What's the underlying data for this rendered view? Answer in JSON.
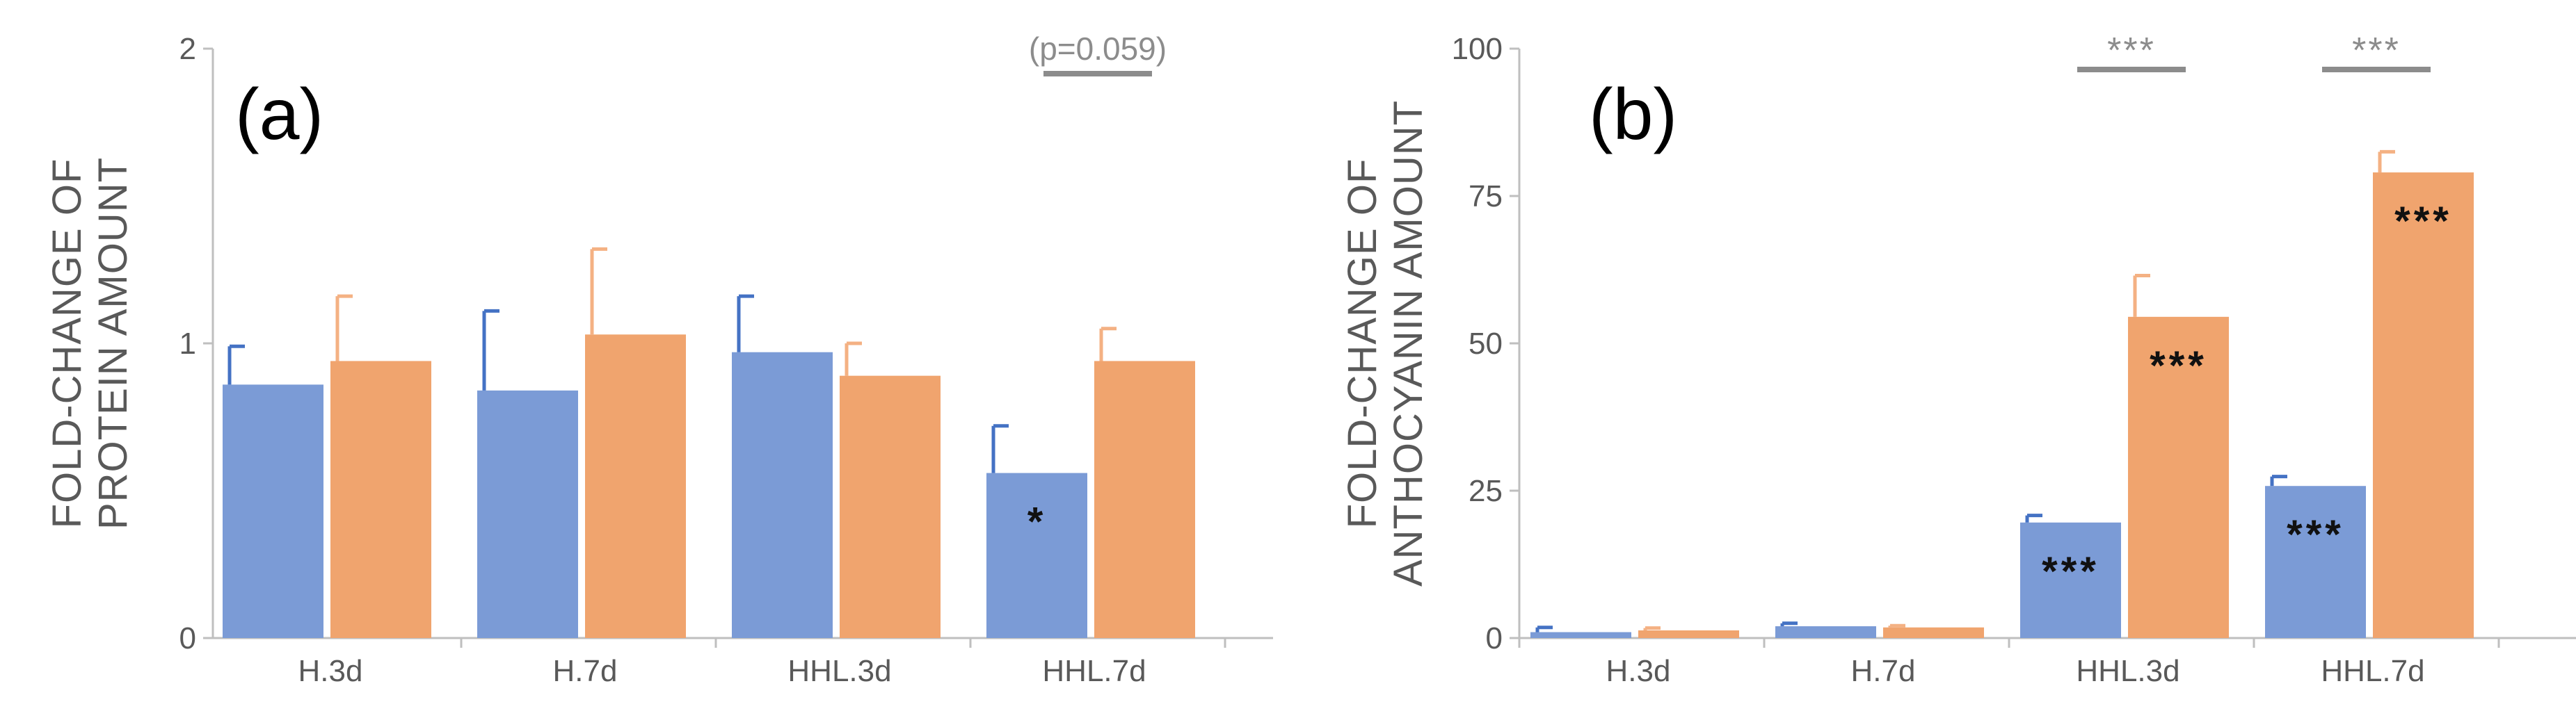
{
  "chart_data": [
    {
      "type": "bar",
      "panel_label": "(a)",
      "ylabel": [
        "FOLD-CHANGE OF",
        "PROTEIN AMOUNT"
      ],
      "categories": [
        "H.3d",
        "H.7d",
        "HHL.3d",
        "HHL.7d"
      ],
      "ylim": [
        0,
        2
      ],
      "yticks": [
        "0",
        "1",
        "2"
      ],
      "ytick_values": [
        0,
        1,
        2
      ],
      "grid": false,
      "series": [
        {
          "name": "blue",
          "color": "#7b9bd6",
          "values": [
            0.86,
            0.84,
            0.97,
            0.56
          ],
          "errors": [
            0.13,
            0.27,
            0.19,
            0.16
          ]
        },
        {
          "name": "orange",
          "color": "#f0a46e",
          "values": [
            0.94,
            1.03,
            0.89,
            0.94
          ],
          "errors": [
            0.22,
            0.29,
            0.11,
            0.11
          ]
        }
      ],
      "bar_annotations": [
        {
          "category": 3,
          "series": 0,
          "text": "*"
        }
      ],
      "comparison_annotations": [
        {
          "category": 3,
          "text": "(p=0.059)"
        }
      ]
    },
    {
      "type": "bar",
      "panel_label": "(b)",
      "ylabel": [
        "FOLD-CHANGE OF",
        "ANTHOCYANIN AMOUNT"
      ],
      "categories": [
        "H.3d",
        "H.7d",
        "HHL.3d",
        "HHL.7d"
      ],
      "ylim": [
        0,
        100
      ],
      "yticks": [
        "0",
        "25",
        "50",
        "75",
        "100"
      ],
      "ytick_values": [
        0,
        25,
        50,
        75,
        100
      ],
      "grid": false,
      "series": [
        {
          "name": "blue",
          "color": "#7b9bd6",
          "values": [
            1,
            2,
            19.6,
            25.8
          ],
          "errors": [
            0.8,
            0.5,
            1.2,
            1.6
          ]
        },
        {
          "name": "orange",
          "color": "#f0a46e",
          "values": [
            1.3,
            1.8,
            54.5,
            79
          ],
          "errors": [
            0.4,
            0.3,
            7,
            3.5
          ]
        }
      ],
      "bar_annotations": [
        {
          "category": 2,
          "series": 0,
          "text": "***"
        },
        {
          "category": 2,
          "series": 1,
          "text": "***"
        },
        {
          "category": 3,
          "series": 0,
          "text": "***"
        },
        {
          "category": 3,
          "series": 1,
          "text": "***"
        }
      ],
      "comparison_annotations": [
        {
          "category": 2,
          "text": "***"
        },
        {
          "category": 3,
          "text": "***"
        }
      ]
    }
  ]
}
